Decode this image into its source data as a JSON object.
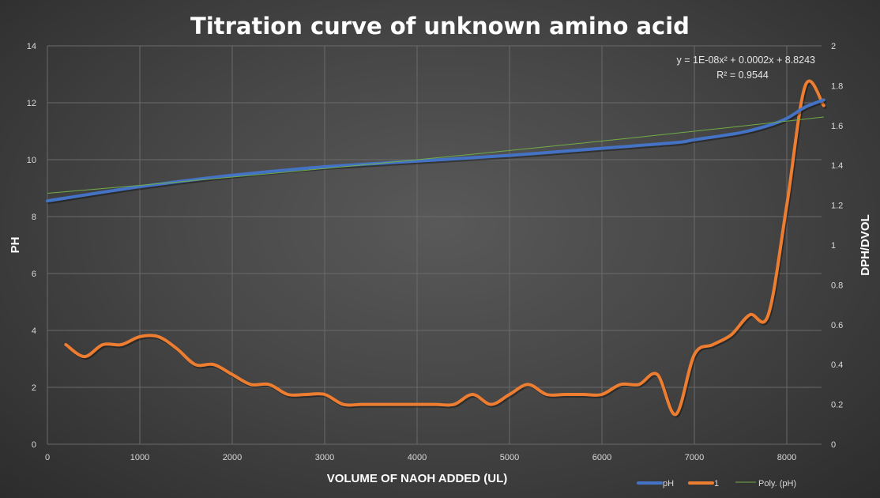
{
  "chart_data": {
    "type": "line",
    "title": "Titration curve of unknown amino acid",
    "xlabel": "VOLUME OF NAOH ADDED (UL)",
    "ylabel": "PH",
    "y2label": "DPH/DVOL",
    "xlim": [
      0,
      8400
    ],
    "ylim": [
      0,
      14
    ],
    "y2lim": [
      0,
      2
    ],
    "xticks": [
      "0",
      "1000",
      "2000",
      "3000",
      "4000",
      "5000",
      "6000",
      "7000",
      "8000"
    ],
    "yticks": [
      "0",
      "2",
      "4",
      "6",
      "8",
      "10",
      "12",
      "14"
    ],
    "y2ticks": [
      "0",
      "0.2",
      "0.4",
      "0.6",
      "0.8",
      "1",
      "1.2",
      "1.4",
      "1.6",
      "1.8",
      "2"
    ],
    "grid": true,
    "legend_position": "bottom-right",
    "series": [
      {
        "name": "pH",
        "axis": "left",
        "color": "#4472c4",
        "x": [
          0,
          1000,
          2000,
          3000,
          4000,
          5000,
          6000,
          6800,
          7000,
          7500,
          7800,
          8000,
          8200,
          8400
        ],
        "y": [
          8.55,
          9.05,
          9.45,
          9.75,
          9.95,
          10.15,
          10.4,
          10.6,
          10.7,
          10.95,
          11.2,
          11.45,
          11.85,
          12.1
        ]
      },
      {
        "name": "1",
        "axis": "right",
        "color": "#ed7d31",
        "x": [
          200,
          400,
          600,
          800,
          1000,
          1200,
          1400,
          1600,
          1800,
          2000,
          2200,
          2400,
          2600,
          2800,
          3000,
          3200,
          3400,
          3600,
          3800,
          4000,
          4200,
          4400,
          4600,
          4800,
          5000,
          5200,
          5400,
          5600,
          5800,
          6000,
          6200,
          6400,
          6600,
          6800,
          7000,
          7200,
          7400,
          7600,
          7800,
          8000,
          8200,
          8400
        ],
        "y": [
          0.5,
          0.44,
          0.5,
          0.5,
          0.54,
          0.54,
          0.48,
          0.4,
          0.4,
          0.35,
          0.3,
          0.3,
          0.25,
          0.25,
          0.25,
          0.2,
          0.2,
          0.2,
          0.2,
          0.2,
          0.2,
          0.2,
          0.25,
          0.2,
          0.25,
          0.3,
          0.25,
          0.25,
          0.25,
          0.25,
          0.3,
          0.3,
          0.35,
          0.15,
          0.45,
          0.5,
          0.55,
          0.65,
          0.65,
          1.2,
          1.8,
          1.7
        ]
      },
      {
        "name": "Poly. (pH)",
        "axis": "left",
        "color": "#70ad47",
        "trendline": true,
        "x": [
          0,
          4000,
          8400
        ],
        "y": [
          8.82,
          10.0,
          11.5
        ]
      }
    ],
    "trendline_equation": "y = 1E-08x² + 0.0002x + 8.8243",
    "trendline_r2": "R² = 0.9544"
  }
}
